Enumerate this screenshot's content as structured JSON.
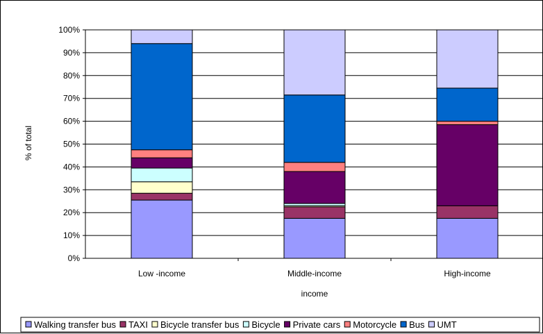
{
  "chart_data": {
    "type": "bar",
    "stacked": true,
    "percent": true,
    "categories": [
      "Low -income",
      "Middle-income",
      "High-income"
    ],
    "xlabel": "income",
    "ylabel": "% of total",
    "ylim": [
      0,
      100
    ],
    "yticks": [
      "0%",
      "10%",
      "20%",
      "30%",
      "40%",
      "50%",
      "60%",
      "70%",
      "80%",
      "90%",
      "100%"
    ],
    "grid": true,
    "legend_position": "bottom",
    "series": [
      {
        "name": "Walking transfer bus",
        "color": "#9999ff",
        "values": [
          25.5,
          17.5,
          17.5
        ]
      },
      {
        "name": "TAXI",
        "color": "#993366",
        "values": [
          3.0,
          5.0,
          5.5
        ]
      },
      {
        "name": "Bicycle transfer bus",
        "color": "#ffffcc",
        "values": [
          5.0,
          0.5,
          0
        ]
      },
      {
        "name": "Bicycle",
        "color": "#ccffff",
        "values": [
          6.0,
          1.0,
          0
        ]
      },
      {
        "name": "Private cars",
        "color": "#660066",
        "values": [
          4.5,
          14.0,
          35.5
        ]
      },
      {
        "name": "Motorcycle",
        "color": "#ff8080",
        "values": [
          3.5,
          4.0,
          1.5
        ]
      },
      {
        "name": "Bus",
        "color": "#0066cc",
        "values": [
          46.5,
          29.5,
          14.5
        ]
      },
      {
        "name": "UMT",
        "color": "#ccccff",
        "values": [
          6.0,
          28.5,
          25.5
        ]
      }
    ]
  }
}
